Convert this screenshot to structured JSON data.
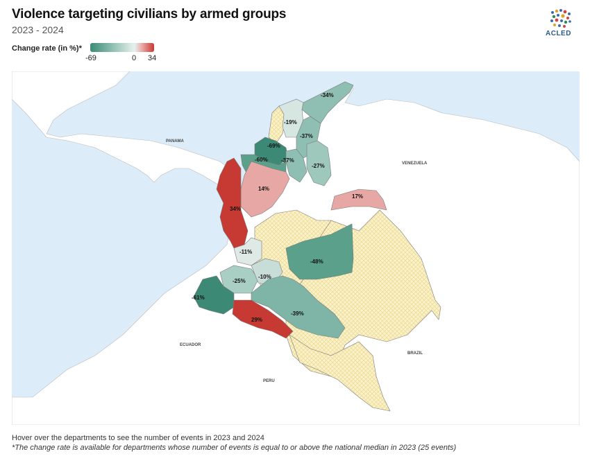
{
  "header": {
    "title": "Violence targeting civilians by armed groups",
    "subtitle": "2023 - 2024"
  },
  "logo": {
    "text": "ACLED"
  },
  "legend": {
    "title": "Change rate (in %)*",
    "min_label": "-69",
    "mid_label": "0",
    "max_label": "34",
    "colors": {
      "negative": "#3c8a76",
      "neutral": "#e6efec",
      "positive": "#c63a33",
      "no_data": "#f7eab6"
    }
  },
  "map": {
    "countries": {
      "panama": "PANAMA",
      "venezuela": "VENEZUELA",
      "ecuador": "ECUADOR",
      "peru": "PERU",
      "brazil": "BRAZIL"
    },
    "departments": [
      {
        "label": "-34%",
        "value": -34
      },
      {
        "label": "-19%",
        "value": -19
      },
      {
        "label": "-37%",
        "value": -37
      },
      {
        "label": "-69%",
        "value": -69
      },
      {
        "label": "-60%",
        "value": -60
      },
      {
        "label": "-37%",
        "value": -37
      },
      {
        "label": "-27%",
        "value": -27
      },
      {
        "label": "14%",
        "value": 14
      },
      {
        "label": "17%",
        "value": 17
      },
      {
        "label": "34%",
        "value": 34
      },
      {
        "label": "-11%",
        "value": -11
      },
      {
        "label": "-48%",
        "value": -48
      },
      {
        "label": "-25%",
        "value": -25
      },
      {
        "label": "-10%",
        "value": -10
      },
      {
        "label": "-61%",
        "value": -61
      },
      {
        "label": "29%",
        "value": 29
      },
      {
        "label": "-39%",
        "value": -39
      }
    ]
  },
  "footer": {
    "hover_note": "Hover over the departments to see the number of events in 2023 and 2024",
    "footnote": "*The change rate is available for departments whose number of events is equal to or above the national median in 2023 (25 events)"
  }
}
